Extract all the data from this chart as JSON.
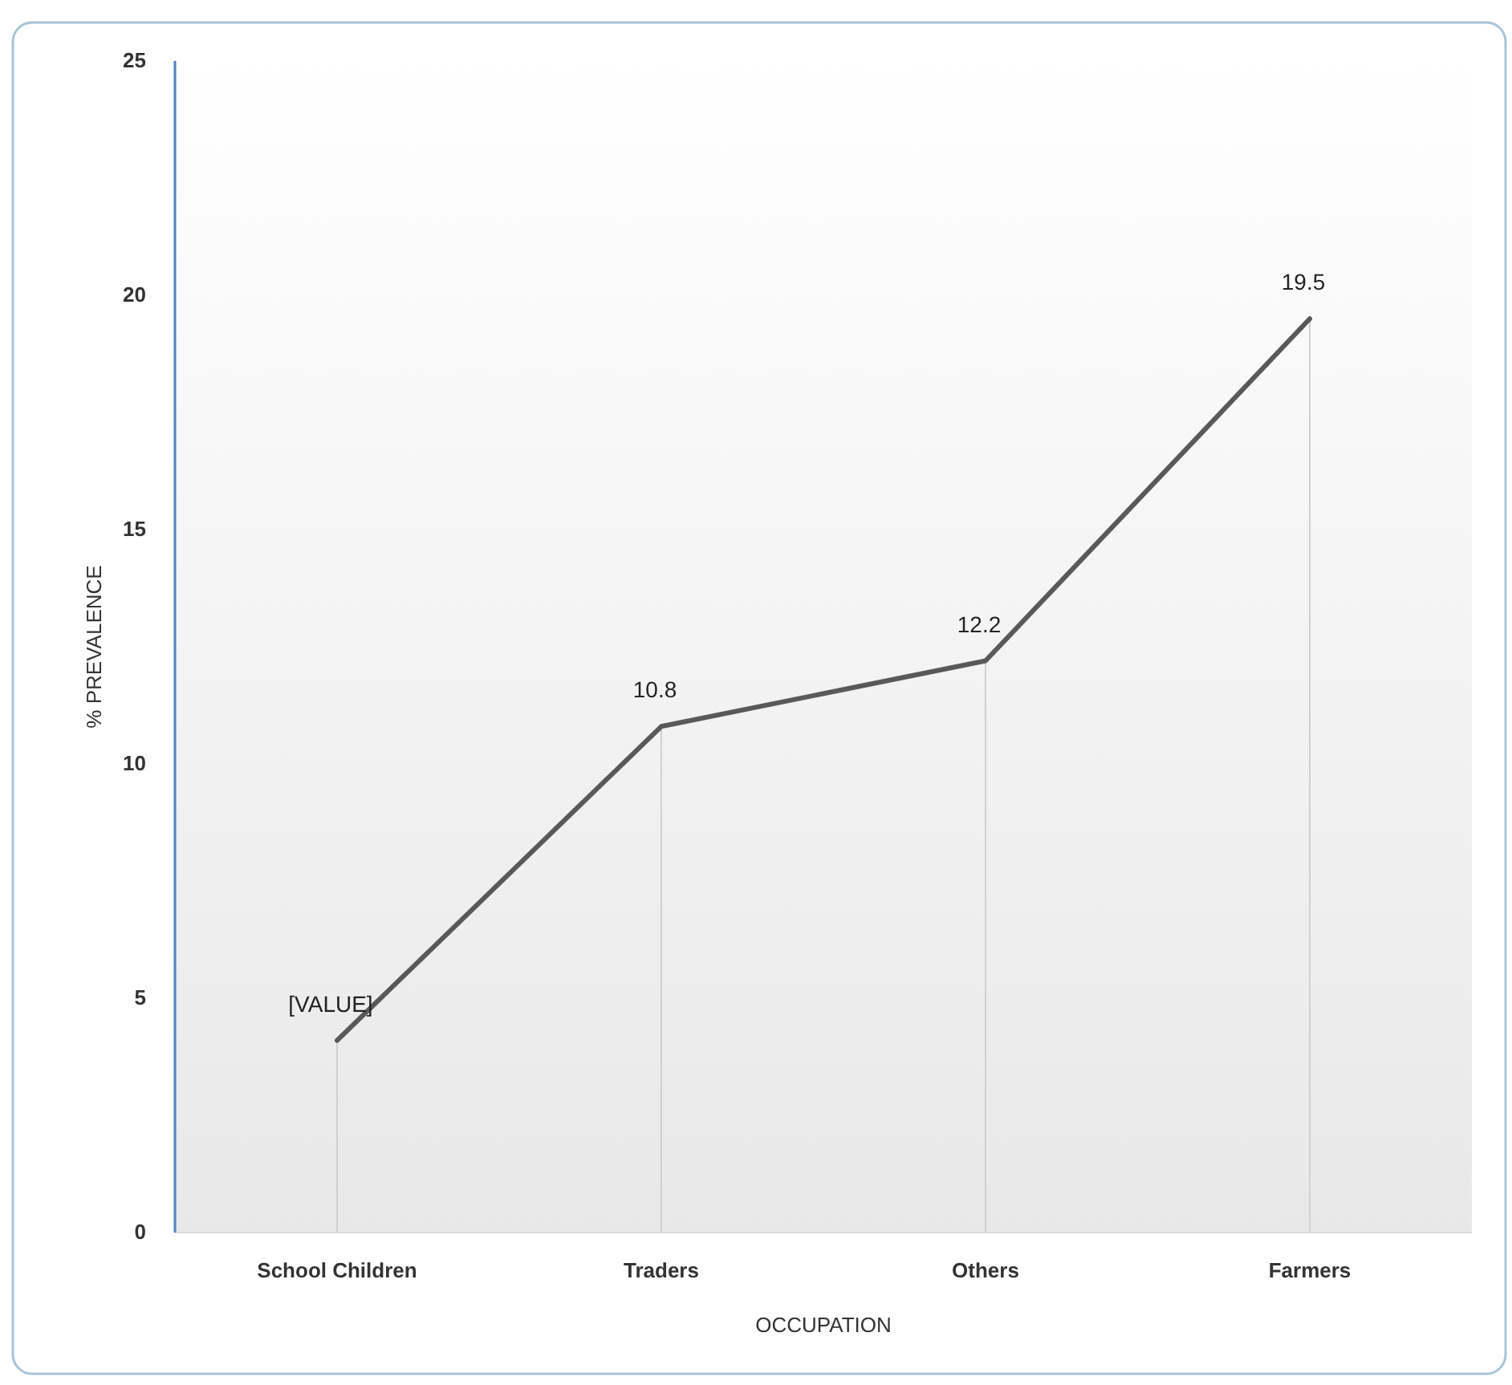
{
  "chart_data": {
    "type": "line",
    "xlabel": "OCCUPATION",
    "ylabel": "% PREVALENCE",
    "categories": [
      "School Children",
      "Traders",
      "Others",
      "Farmers"
    ],
    "series": [
      {
        "color": "#595959",
        "values": [
          4.1,
          10.8,
          12.2,
          19.5
        ]
      }
    ],
    "value_labels": [
      "[VALUE]",
      "10.8",
      "12.2",
      "19.5"
    ],
    "ylim": [
      0,
      25
    ],
    "yticks": [
      0,
      5,
      10,
      15,
      20,
      25
    ],
    "grid": "x",
    "marker": "none",
    "line_style": "solid"
  }
}
